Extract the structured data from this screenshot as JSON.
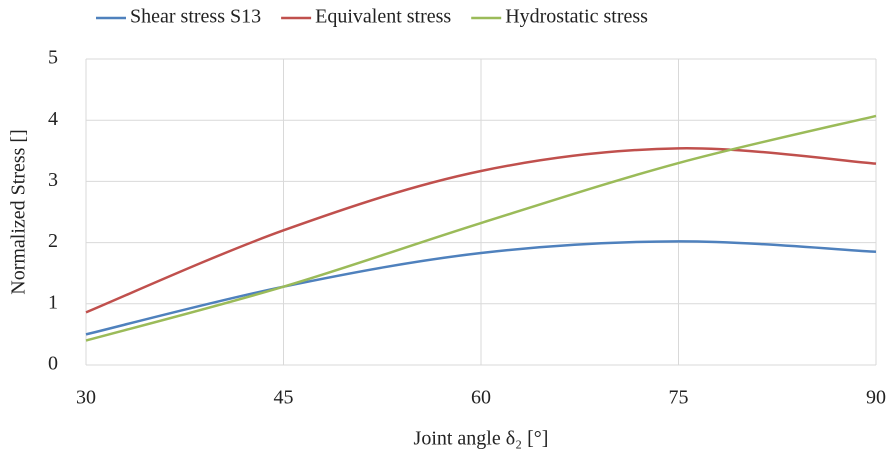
{
  "chart_data": {
    "type": "line",
    "smooth": true,
    "grid": true,
    "legend": "top",
    "xlabel": "Joint angle δ₂ [°]",
    "ylabel": "Normalized Stress []",
    "x": [
      30,
      45,
      60,
      75,
      90
    ],
    "series": [
      {
        "name": "Shear stress S13",
        "color": "#4f81bd",
        "values": [
          0.5,
          1.28,
          1.83,
          2.02,
          1.85
        ]
      },
      {
        "name": "Equivalent stress",
        "color": "#c0504d",
        "values": [
          0.86,
          2.2,
          3.17,
          3.54,
          3.29
        ]
      },
      {
        "name": "Hydrostatic stress",
        "color": "#9bbb59",
        "values": [
          0.4,
          1.28,
          2.32,
          3.3,
          4.07
        ]
      }
    ],
    "xlim": [
      30,
      90
    ],
    "xticks": [
      30,
      45,
      60,
      75,
      90
    ],
    "ylim": [
      0,
      5
    ],
    "yticks": [
      0,
      1,
      2,
      3,
      4,
      5
    ]
  }
}
